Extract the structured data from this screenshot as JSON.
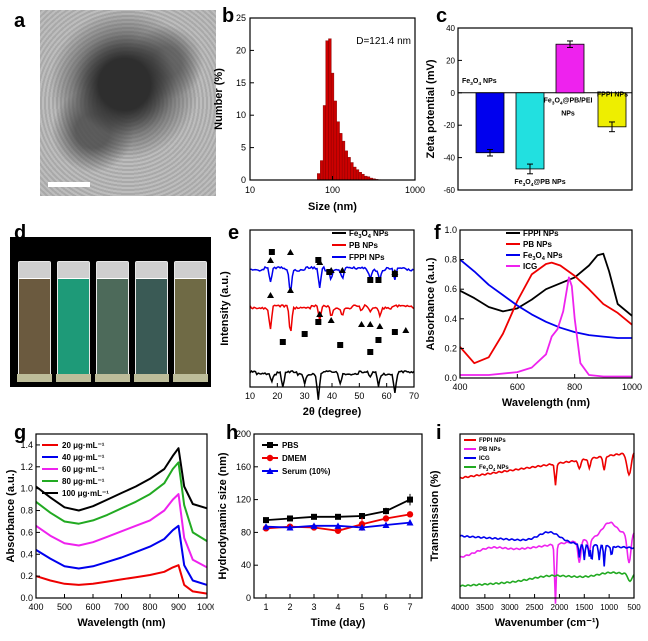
{
  "figure": {
    "panels": [
      "a",
      "b",
      "c",
      "d",
      "e",
      "f",
      "g",
      "h",
      "i"
    ]
  },
  "panel_d": {
    "vial_colors": [
      "#6b5a3f",
      "#1e9a78",
      "#4d6a5a",
      "#3a5a55",
      "#6f6a45"
    ]
  },
  "chart_data": [
    {
      "panel": "b",
      "type": "bar",
      "xlabel": "Size (nm)",
      "ylabel": "Number (%)",
      "annotation": "D=121.4 nm",
      "xscale": "log",
      "xlim": [
        10,
        1000
      ],
      "ylim": [
        0,
        25
      ],
      "xticks": [
        "10",
        "100",
        "1000"
      ],
      "yticks": [
        "0",
        "5",
        "10",
        "15",
        "20",
        "25"
      ],
      "bar_color": "#cc0000",
      "x": [
        68,
        74,
        80,
        86,
        93,
        100,
        108,
        117,
        126,
        136,
        147,
        159,
        172,
        186,
        201,
        217,
        234,
        253,
        273,
        295,
        319,
        344,
        372,
        402
      ],
      "values": [
        1.0,
        3.0,
        11.5,
        21.5,
        21.8,
        16.5,
        12.2,
        9.0,
        7.2,
        6.0,
        4.5,
        3.5,
        2.7,
        2.0,
        1.6,
        1.2,
        0.9,
        0.6,
        0.5,
        0.3,
        0.2,
        0.1,
        0.05,
        0.02
      ]
    },
    {
      "panel": "c",
      "type": "bar",
      "ylabel": "Zeta potential (mV)",
      "ylim": [
        -60,
        40
      ],
      "yticks": [
        "40",
        "20",
        "0",
        "-20",
        "-40",
        "-60"
      ],
      "categories": [
        "Fe3O4 NPs",
        "Fe3O4@PB NPs",
        "Fe3O4@PB/PEI NPs",
        "FPPI NPs"
      ],
      "labels": {
        "fe3o4": {
          "a": "Fe",
          "s1": "3",
          "b": "O",
          "s2": "4",
          "c": " NPs"
        },
        "fe3o4pb": {
          "a": "Fe",
          "s1": "3",
          "b": "O",
          "s2": "4",
          "c": "@PB NPs"
        },
        "fe3o4pbpei": {
          "a": "Fe",
          "s1": "3",
          "b": "O",
          "s2": "4",
          "c": "@PB/PEI",
          "d": "NPs"
        },
        "fppi": "FPPI NPs"
      },
      "values": [
        -37,
        -47,
        30,
        -21
      ],
      "errors": [
        2,
        3,
        2,
        3
      ],
      "colors": [
        "#0000ee",
        "#22e0e0",
        "#ee22ee",
        "#eeee00"
      ]
    },
    {
      "panel": "e",
      "type": "line",
      "xlabel": "2θ (degree)",
      "ylabel": "Intensity (a.u.)",
      "xlim": [
        10,
        70
      ],
      "xticks": [
        "10",
        "20",
        "30",
        "40",
        "50",
        "60",
        "70"
      ],
      "legend": {
        "fe3o4": {
          "a": "Fe",
          "s1": "3",
          "b": "O",
          "s2": "4",
          "c": " NPs"
        },
        "pb": "PB NPs",
        "fppi": "FPPI NPs"
      },
      "colors": [
        "#000000",
        "#ee0000",
        "#0000ee"
      ],
      "marker_symbols": {
        "square": "■",
        "triangle": "▲"
      }
    },
    {
      "panel": "f",
      "type": "line",
      "xlabel": "Wavelength (nm)",
      "ylabel": "Absorbance (a.u.)",
      "xlim": [
        400,
        1000
      ],
      "ylim": [
        0,
        1.0
      ],
      "xticks": [
        "400",
        "600",
        "800",
        "1000"
      ],
      "yticks": [
        "0.0",
        "0.2",
        "0.4",
        "0.6",
        "0.8",
        "1.0"
      ],
      "legend": {
        "fppi": "FPPI NPs",
        "pb": "PB NPs",
        "fe3o4": {
          "a": "Fe",
          "s1": "3",
          "b": "O",
          "s2": "4",
          "c": " NPs"
        },
        "icg": "ICG"
      },
      "colors": [
        "#000000",
        "#ee0000",
        "#0000ee",
        "#ee22ee"
      ],
      "series": [
        {
          "name": "FPPI NPs",
          "x": [
            400,
            450,
            500,
            550,
            600,
            650,
            700,
            750,
            800,
            850,
            880,
            900,
            920,
            950,
            1000
          ],
          "values": [
            0.59,
            0.54,
            0.48,
            0.45,
            0.47,
            0.53,
            0.6,
            0.64,
            0.68,
            0.76,
            0.83,
            0.84,
            0.72,
            0.5,
            0.42
          ]
        },
        {
          "name": "PB NPs",
          "x": [
            400,
            450,
            500,
            550,
            600,
            650,
            700,
            720,
            750,
            800,
            850,
            900,
            950,
            1000
          ],
          "values": [
            0.21,
            0.1,
            0.14,
            0.3,
            0.52,
            0.7,
            0.77,
            0.78,
            0.76,
            0.69,
            0.6,
            0.5,
            0.44,
            0.36
          ]
        },
        {
          "name": "Fe3O4 NPs",
          "x": [
            400,
            450,
            500,
            550,
            600,
            650,
            700,
            750,
            800,
            850,
            900,
            950,
            1000
          ],
          "values": [
            0.8,
            0.72,
            0.63,
            0.56,
            0.49,
            0.43,
            0.38,
            0.34,
            0.31,
            0.29,
            0.28,
            0.27,
            0.27
          ]
        },
        {
          "name": "ICG",
          "x": [
            400,
            500,
            600,
            650,
            700,
            720,
            740,
            760,
            780,
            790,
            800,
            820,
            850,
            900,
            1000
          ],
          "values": [
            0.02,
            0.02,
            0.04,
            0.07,
            0.16,
            0.28,
            0.33,
            0.45,
            0.68,
            0.62,
            0.4,
            0.1,
            0.02,
            0.01,
            0.01
          ]
        }
      ]
    },
    {
      "panel": "g",
      "type": "line",
      "xlabel": "Wavelength (nm)",
      "ylabel": "Absorbance (a.u.)",
      "xlim": [
        400,
        1000
      ],
      "ylim": [
        0,
        1.5
      ],
      "xticks": [
        "400",
        "500",
        "600",
        "700",
        "800",
        "900",
        "1000"
      ],
      "yticks": [
        "0.0",
        "0.2",
        "0.4",
        "0.6",
        "0.8",
        "1.0",
        "1.2",
        "1.4"
      ],
      "legend": [
        "20 μg·mL⁻¹",
        "40 μg·mL⁻¹",
        "60 μg·mL⁻¹",
        "80 μg·mL⁻¹",
        "100 μg·mL⁻¹"
      ],
      "colors": [
        "#ee0000",
        "#0000ee",
        "#ee22ee",
        "#22aa22",
        "#000000"
      ],
      "x": [
        400,
        450,
        500,
        550,
        600,
        650,
        700,
        750,
        800,
        850,
        880,
        900,
        920,
        950,
        1000
      ],
      "series": [
        {
          "name": "20 μg·mL⁻¹",
          "values": [
            0.2,
            0.16,
            0.13,
            0.12,
            0.13,
            0.15,
            0.17,
            0.19,
            0.21,
            0.24,
            0.28,
            0.3,
            0.12,
            0.06,
            0.04
          ]
        },
        {
          "name": "40 μg·mL⁻¹",
          "values": [
            0.44,
            0.36,
            0.29,
            0.27,
            0.29,
            0.33,
            0.37,
            0.42,
            0.47,
            0.54,
            0.62,
            0.66,
            0.3,
            0.16,
            0.12
          ]
        },
        {
          "name": "60 μg·mL⁻¹",
          "values": [
            0.66,
            0.57,
            0.5,
            0.48,
            0.51,
            0.56,
            0.61,
            0.66,
            0.71,
            0.8,
            0.9,
            0.95,
            0.55,
            0.35,
            0.28
          ]
        },
        {
          "name": "80 μg·mL⁻¹",
          "values": [
            0.88,
            0.78,
            0.7,
            0.68,
            0.71,
            0.76,
            0.82,
            0.88,
            0.95,
            1.05,
            1.18,
            1.24,
            0.85,
            0.6,
            0.52
          ]
        },
        {
          "name": "100 μg·mL⁻¹",
          "values": [
            1.02,
            0.92,
            0.83,
            0.8,
            0.84,
            0.9,
            0.96,
            1.02,
            1.09,
            1.18,
            1.3,
            1.37,
            1.02,
            0.86,
            0.82
          ]
        }
      ]
    },
    {
      "panel": "h",
      "type": "line",
      "xlabel": "Time (day)",
      "ylabel": "Hydrodynamic size (nm)",
      "xlim": [
        0.5,
        7.5
      ],
      "ylim": [
        0,
        200
      ],
      "xticks": [
        "1",
        "2",
        "3",
        "4",
        "5",
        "6",
        "7"
      ],
      "yticks": [
        "0",
        "40",
        "80",
        "120",
        "160",
        "200"
      ],
      "legend": [
        "PBS",
        "DMEM",
        "Serum (10%)"
      ],
      "colors": [
        "#000000",
        "#ee0000",
        "#0000ee"
      ],
      "markers": [
        "square",
        "circle",
        "triangle"
      ],
      "x": [
        1,
        2,
        3,
        4,
        5,
        6,
        7
      ],
      "series": [
        {
          "name": "PBS",
          "values": [
            95,
            97,
            99,
            99,
            100,
            106,
            120
          ],
          "errors": [
            2,
            2,
            2,
            2,
            3,
            4,
            7
          ]
        },
        {
          "name": "DMEM",
          "values": [
            85,
            87,
            86,
            82,
            90,
            97,
            102
          ],
          "errors": [
            2,
            2,
            2,
            2,
            8,
            3,
            3
          ]
        },
        {
          "name": "Serum (10%)",
          "values": [
            87,
            86,
            88,
            88,
            86,
            89,
            92
          ],
          "errors": [
            2,
            2,
            2,
            2,
            3,
            2,
            2
          ]
        }
      ]
    },
    {
      "panel": "i",
      "type": "line",
      "xlabel": "Wavenumber (cm⁻¹)",
      "ylabel": "Transmission (%)",
      "xlim": [
        4000,
        500
      ],
      "xticks": [
        "4000",
        "3500",
        "3000",
        "2500",
        "2000",
        "1500",
        "1000",
        "500"
      ],
      "legend": {
        "fppi": "FPPI NPs",
        "pb": "PB NPs",
        "icg": "ICG",
        "fe3o4": {
          "a": "Fe",
          "s1": "3",
          "b": "O",
          "s2": "4",
          "c": " NPs"
        }
      },
      "colors": [
        "#ee0000",
        "#ee22ee",
        "#0000ee",
        "#22aa22"
      ]
    }
  ]
}
